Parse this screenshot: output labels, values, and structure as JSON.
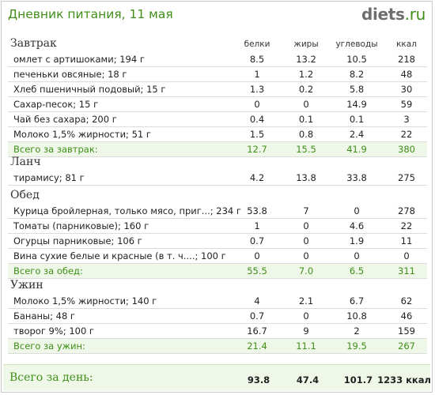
{
  "header": {
    "title": "Дневник питания, 11 мая",
    "logo_main": "diets",
    "logo_tld": ".ru"
  },
  "columns": {
    "protein": "белки",
    "fat": "жиры",
    "carbs": "углеводы",
    "kcal": "ккал"
  },
  "meals": {
    "breakfast": {
      "name": "Завтрак",
      "items": [
        {
          "name": "омлет с артишоками; 194 г",
          "protein": "8.5",
          "fat": "13.2",
          "carbs": "10.5",
          "kcal": "218"
        },
        {
          "name": "печеньки овсяные; 18 г",
          "protein": "1",
          "fat": "1.2",
          "carbs": "8.2",
          "kcal": "48"
        },
        {
          "name": "Хлеб пшеничный подовый; 15 г",
          "protein": "1.3",
          "fat": "0.2",
          "carbs": "5.8",
          "kcal": "30"
        },
        {
          "name": "Сахар-песок; 15 г",
          "protein": "0",
          "fat": "0",
          "carbs": "14.9",
          "kcal": "59"
        },
        {
          "name": "Чай без сахара; 200 г",
          "protein": "0.4",
          "fat": "0.1",
          "carbs": "0.1",
          "kcal": "3"
        },
        {
          "name": "Молоко 1,5% жирности; 51 г",
          "protein": "1.5",
          "fat": "0.8",
          "carbs": "2.4",
          "kcal": "22"
        }
      ],
      "total": {
        "label": "Всего за завтрак:",
        "protein": "12.7",
        "fat": "15.5",
        "carbs": "41.9",
        "kcal": "380"
      }
    },
    "lunch": {
      "name": "Ланч",
      "items": [
        {
          "name": "тирамису; 81 г",
          "protein": "4.2",
          "fat": "13.8",
          "carbs": "33.8",
          "kcal": "275"
        }
      ]
    },
    "dinner": {
      "name": "Обед",
      "items": [
        {
          "name": "Курица бройлерная, только мясо, приг...; 234 г",
          "protein": "53.8",
          "fat": "7",
          "carbs": "0",
          "kcal": "278"
        },
        {
          "name": "Томаты (парниковые); 160 г",
          "protein": "1",
          "fat": "0",
          "carbs": "4.6",
          "kcal": "22"
        },
        {
          "name": "Огурцы парниковые; 106 г",
          "protein": "0.7",
          "fat": "0",
          "carbs": "1.9",
          "kcal": "11"
        },
        {
          "name": "Вина сухие белые и красные (в т. ч....; 100 г",
          "protein": "0",
          "fat": "0",
          "carbs": "0",
          "kcal": "0"
        }
      ],
      "total": {
        "label": "Всего за обед:",
        "protein": "55.5",
        "fat": "7.0",
        "carbs": "6.5",
        "kcal": "311"
      }
    },
    "supper": {
      "name": "Ужин",
      "items": [
        {
          "name": "Молоко 1,5% жирности; 140 г",
          "protein": "4",
          "fat": "2.1",
          "carbs": "6.7",
          "kcal": "62"
        },
        {
          "name": "Бананы; 48 г",
          "protein": "0.7",
          "fat": "0",
          "carbs": "10.8",
          "kcal": "46"
        },
        {
          "name": "творог 9%; 100 г",
          "protein": "16.7",
          "fat": "9",
          "carbs": "2",
          "kcal": "159"
        }
      ],
      "total": {
        "label": "Всего за ужин:",
        "protein": "21.4",
        "fat": "11.1",
        "carbs": "19.5",
        "kcal": "267"
      }
    }
  },
  "day_total": {
    "label": "Всего за день:",
    "protein": "93.8",
    "fat": "47.4",
    "carbs": "101.7",
    "kcal": "1233 ккал"
  }
}
